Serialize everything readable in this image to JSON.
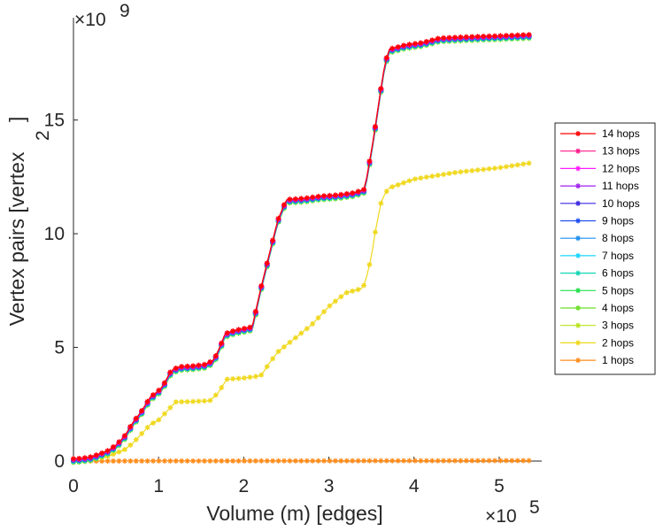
{
  "chart_data": {
    "type": "line",
    "xlabel": "Volume (m) [edges]",
    "ylabel": "Vertex pairs [vertex",
    "ylabel_sup": "2",
    "ylabel_tail": "]",
    "x_multiplier": "×10",
    "x_exponent": "5",
    "y_multiplier": "×10",
    "y_exponent": "9",
    "x_unit": "1e5 edges",
    "y_unit": "1e9 vertex^2",
    "xlim": [
      0,
      5.5
    ],
    "ylim": [
      0,
      19.5
    ],
    "xticks": [
      "0",
      "1",
      "2",
      "3",
      "4",
      "5"
    ],
    "yticks": [
      "0",
      "5",
      "10",
      "15"
    ],
    "grid": false,
    "legend_position": "right",
    "series": [
      {
        "name": "14 hops",
        "color": "#ff0000",
        "profile": "full"
      },
      {
        "name": "13 hops",
        "color": "#ff1a8c",
        "profile": "full"
      },
      {
        "name": "12 hops",
        "color": "#ff1aff",
        "profile": "full"
      },
      {
        "name": "11 hops",
        "color": "#a020f0",
        "profile": "full"
      },
      {
        "name": "10 hops",
        "color": "#3a28e0",
        "profile": "full"
      },
      {
        "name": "9 hops",
        "color": "#1f4ff0",
        "profile": "full"
      },
      {
        "name": "8 hops",
        "color": "#1f8ff0",
        "profile": "full"
      },
      {
        "name": "7 hops",
        "color": "#19d6ff",
        "profile": "full"
      },
      {
        "name": "6 hops",
        "color": "#14d6b4",
        "profile": "full"
      },
      {
        "name": "5 hops",
        "color": "#22e04a",
        "profile": "full"
      },
      {
        "name": "4 hops",
        "color": "#6be028",
        "profile": "full"
      },
      {
        "name": "3 hops",
        "color": "#b8e31c",
        "profile": "full"
      },
      {
        "name": "2 hops",
        "color": "#f0d81c",
        "profile": "two"
      },
      {
        "name": "1 hops",
        "color": "#ff8c1a",
        "profile": "one"
      }
    ],
    "profiles": {
      "full": [
        [
          0,
          0
        ],
        [
          0.1,
          0.02
        ],
        [
          0.2,
          0.08
        ],
        [
          0.3,
          0.2
        ],
        [
          0.4,
          0.35
        ],
        [
          0.5,
          0.6
        ],
        [
          0.6,
          1.0
        ],
        [
          0.7,
          1.6
        ],
        [
          0.8,
          2.1
        ],
        [
          0.9,
          2.7
        ],
        [
          1.0,
          3.0
        ],
        [
          1.05,
          3.2
        ],
        [
          1.15,
          3.9
        ],
        [
          1.25,
          4.05
        ],
        [
          1.4,
          4.08
        ],
        [
          1.55,
          4.15
        ],
        [
          1.65,
          4.35
        ],
        [
          1.73,
          5.0
        ],
        [
          1.78,
          5.5
        ],
        [
          1.9,
          5.65
        ],
        [
          2.1,
          5.8
        ],
        [
          2.2,
          7.5
        ],
        [
          2.3,
          9.0
        ],
        [
          2.4,
          10.5
        ],
        [
          2.5,
          11.4
        ],
        [
          2.7,
          11.45
        ],
        [
          2.9,
          11.55
        ],
        [
          3.1,
          11.6
        ],
        [
          3.3,
          11.7
        ],
        [
          3.42,
          11.85
        ],
        [
          3.52,
          14.0
        ],
        [
          3.58,
          15.5
        ],
        [
          3.64,
          17.0
        ],
        [
          3.7,
          18.0
        ],
        [
          3.9,
          18.2
        ],
        [
          4.1,
          18.3
        ],
        [
          4.3,
          18.5
        ],
        [
          4.6,
          18.55
        ],
        [
          5.0,
          18.6
        ],
        [
          5.35,
          18.65
        ]
      ],
      "two": [
        [
          0,
          0
        ],
        [
          0.2,
          0.05
        ],
        [
          0.4,
          0.2
        ],
        [
          0.6,
          0.5
        ],
        [
          0.7,
          0.8
        ],
        [
          0.8,
          1.2
        ],
        [
          0.9,
          1.6
        ],
        [
          1.0,
          1.8
        ],
        [
          1.1,
          2.2
        ],
        [
          1.2,
          2.6
        ],
        [
          1.4,
          2.62
        ],
        [
          1.6,
          2.65
        ],
        [
          1.7,
          3.0
        ],
        [
          1.8,
          3.6
        ],
        [
          2.0,
          3.65
        ],
        [
          2.2,
          3.75
        ],
        [
          2.3,
          4.3
        ],
        [
          2.4,
          4.8
        ],
        [
          2.6,
          5.4
        ],
        [
          2.8,
          6.0
        ],
        [
          3.0,
          6.8
        ],
        [
          3.2,
          7.4
        ],
        [
          3.4,
          7.6
        ],
        [
          3.45,
          8.2
        ],
        [
          3.5,
          9.0
        ],
        [
          3.55,
          10.2
        ],
        [
          3.62,
          11.5
        ],
        [
          3.7,
          12.0
        ],
        [
          4.0,
          12.4
        ],
        [
          4.5,
          12.7
        ],
        [
          5.0,
          12.9
        ],
        [
          5.35,
          13.1
        ]
      ],
      "one": [
        [
          0,
          0
        ],
        [
          5.35,
          0.02
        ]
      ]
    }
  }
}
